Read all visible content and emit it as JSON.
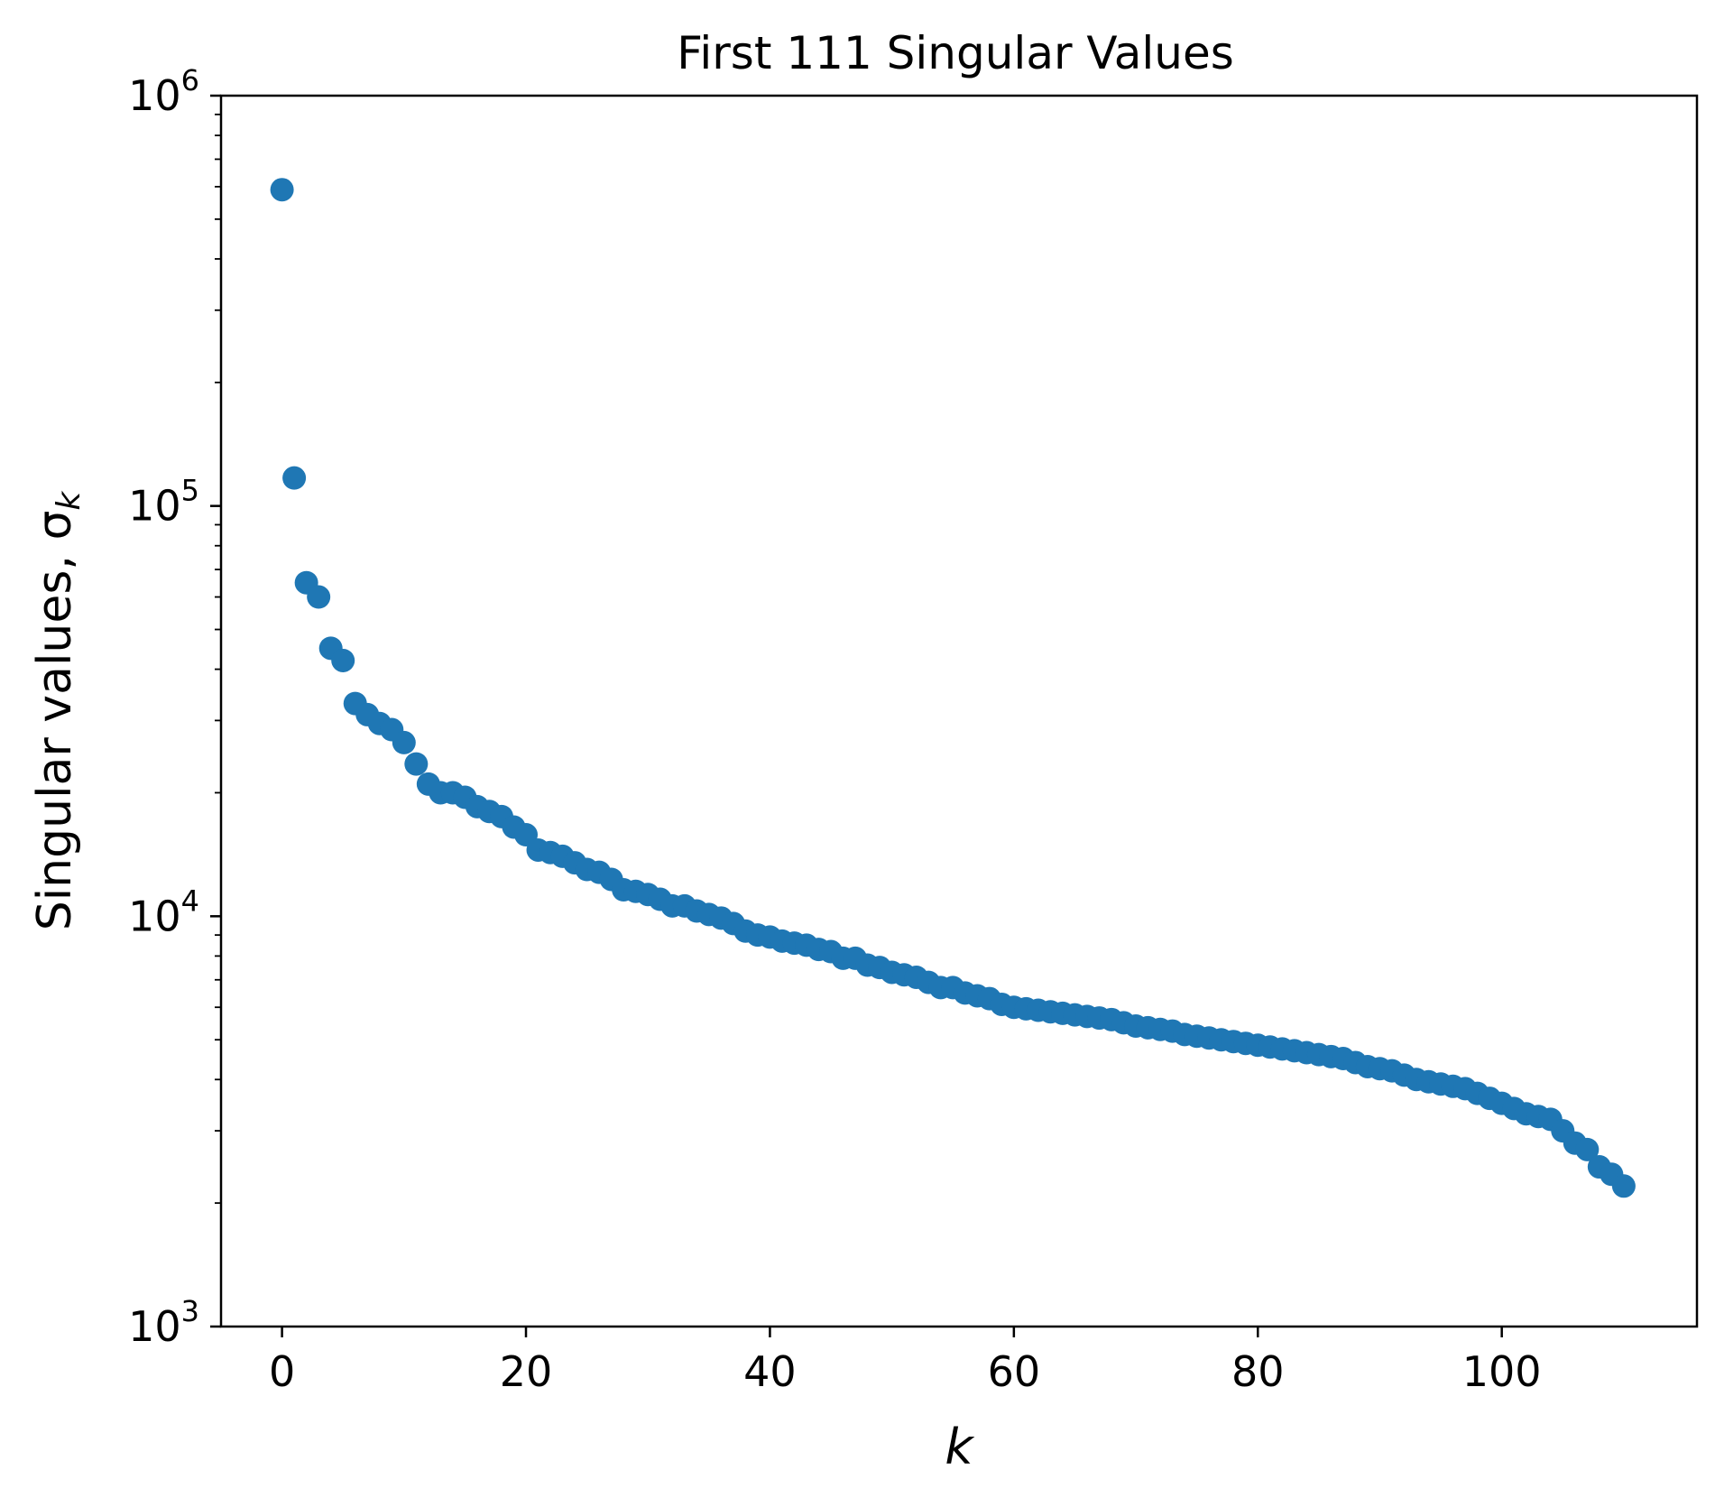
{
  "chart_data": {
    "type": "scatter",
    "title": "First 111 Singular Values",
    "xlabel": "k",
    "ylabel": "Singular values, σ",
    "ylabel_subscript": "k",
    "xlim": [
      -5,
      116
    ],
    "ylim": [
      1000,
      1000000
    ],
    "yscale": "log",
    "grid": false,
    "marker_color": "#1f77b4",
    "x_ticks": [
      0,
      20,
      40,
      60,
      80,
      100
    ],
    "y_ticks": [
      {
        "value": 1000,
        "base": "10",
        "exp": "3"
      },
      {
        "value": 10000,
        "base": "10",
        "exp": "4"
      },
      {
        "value": 100000,
        "base": "10",
        "exp": "5"
      },
      {
        "value": 1000000,
        "base": "10",
        "exp": "6"
      }
    ],
    "series": [
      {
        "x": [
          0,
          1,
          2,
          3,
          4,
          5,
          6,
          7,
          8,
          9,
          10,
          11,
          12,
          13,
          14,
          15,
          16,
          17,
          18,
          19,
          20,
          21,
          22,
          23,
          24,
          25,
          26,
          27,
          28,
          29,
          30,
          31,
          32,
          33,
          34,
          35,
          36,
          37,
          38,
          39,
          40,
          41,
          42,
          43,
          44,
          45,
          46,
          47,
          48,
          49,
          50,
          51,
          52,
          53,
          54,
          55,
          56,
          57,
          58,
          59,
          60,
          61,
          62,
          63,
          64,
          65,
          66,
          67,
          68,
          69,
          70,
          71,
          72,
          73,
          74,
          75,
          76,
          77,
          78,
          79,
          80,
          81,
          82,
          83,
          84,
          85,
          86,
          87,
          88,
          89,
          90,
          91,
          92,
          93,
          94,
          95,
          96,
          97,
          98,
          99,
          100,
          101,
          102,
          103,
          104,
          105,
          106,
          107,
          108,
          109,
          110
        ],
        "values": [
          590000,
          117000,
          65000,
          60000,
          45000,
          42000,
          33000,
          31000,
          29500,
          28500,
          26500,
          23500,
          21000,
          20000,
          20000,
          19500,
          18500,
          18000,
          17500,
          16500,
          15800,
          14500,
          14300,
          14000,
          13500,
          13000,
          12800,
          12300,
          11600,
          11500,
          11300,
          11000,
          10600,
          10600,
          10300,
          10100,
          9900,
          9600,
          9200,
          9000,
          8900,
          8700,
          8600,
          8500,
          8300,
          8200,
          7900,
          7900,
          7600,
          7500,
          7300,
          7200,
          7100,
          6900,
          6700,
          6700,
          6500,
          6400,
          6300,
          6100,
          6000,
          5950,
          5900,
          5850,
          5800,
          5750,
          5700,
          5650,
          5600,
          5500,
          5400,
          5350,
          5300,
          5250,
          5150,
          5100,
          5050,
          5000,
          4950,
          4900,
          4850,
          4800,
          4750,
          4700,
          4650,
          4600,
          4550,
          4500,
          4400,
          4300,
          4250,
          4200,
          4100,
          4000,
          3950,
          3900,
          3850,
          3800,
          3700,
          3600,
          3500,
          3400,
          3300,
          3250,
          3200,
          3000,
          2800,
          2700,
          2450,
          2350,
          2200
        ]
      }
    ]
  }
}
